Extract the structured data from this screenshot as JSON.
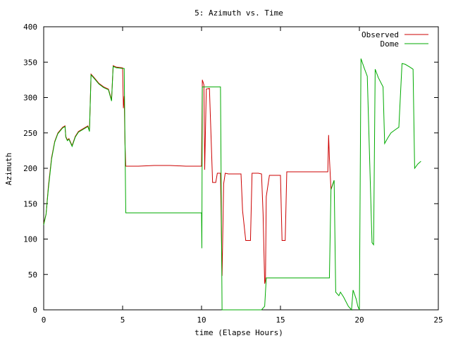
{
  "chart_data": {
    "type": "line",
    "title": "5: Azimuth vs. Time",
    "xlabel": "time (Elapse Hours)",
    "ylabel": "Azimuth",
    "xlim": [
      0,
      25
    ],
    "ylim": [
      0,
      400
    ],
    "x_ticks": [
      0,
      5,
      10,
      15,
      20,
      25
    ],
    "y_ticks": [
      0,
      50,
      100,
      150,
      200,
      250,
      300,
      350,
      400
    ],
    "x_tick_labels": [
      "0",
      "5",
      "10",
      "15",
      "20",
      "25"
    ],
    "y_tick_labels": [
      "0",
      "50",
      "100",
      "150",
      "200",
      "250",
      "300",
      "350",
      "400"
    ],
    "grid": false,
    "legend_position": "top-right",
    "series": [
      {
        "name": "Observed",
        "color": "#cc0000",
        "points": [
          [
            0.0,
            122
          ],
          [
            0.15,
            135
          ],
          [
            0.3,
            175
          ],
          [
            0.5,
            215
          ],
          [
            0.7,
            238
          ],
          [
            0.9,
            250
          ],
          [
            1.2,
            258
          ],
          [
            1.35,
            260
          ],
          [
            1.4,
            245
          ],
          [
            1.5,
            240
          ],
          [
            1.6,
            242
          ],
          [
            1.8,
            232
          ],
          [
            2.0,
            245
          ],
          [
            2.2,
            252
          ],
          [
            2.5,
            256
          ],
          [
            2.8,
            260
          ],
          [
            2.9,
            253
          ],
          [
            3.0,
            333
          ],
          [
            3.2,
            328
          ],
          [
            3.5,
            320
          ],
          [
            3.8,
            315
          ],
          [
            4.1,
            312
          ],
          [
            4.3,
            297
          ],
          [
            4.4,
            345
          ],
          [
            4.6,
            343
          ],
          [
            5.0,
            342
          ],
          [
            5.05,
            285
          ],
          [
            5.1,
            302
          ],
          [
            5.15,
            235
          ],
          [
            5.2,
            203
          ],
          [
            6.0,
            203
          ],
          [
            7.0,
            204
          ],
          [
            8.0,
            204
          ],
          [
            9.0,
            203
          ],
          [
            10.0,
            203
          ],
          [
            10.05,
            325
          ],
          [
            10.15,
            318
          ],
          [
            10.2,
            198
          ],
          [
            10.3,
            312
          ],
          [
            10.5,
            313
          ],
          [
            10.7,
            180
          ],
          [
            10.9,
            180
          ],
          [
            11.0,
            193
          ],
          [
            11.2,
            193
          ],
          [
            11.3,
            48
          ],
          [
            11.4,
            178
          ],
          [
            11.5,
            193
          ],
          [
            11.7,
            192
          ],
          [
            12.5,
            192
          ],
          [
            12.6,
            140
          ],
          [
            12.8,
            98
          ],
          [
            13.1,
            98
          ],
          [
            13.2,
            193
          ],
          [
            13.6,
            193
          ],
          [
            13.8,
            192
          ],
          [
            13.9,
            135
          ],
          [
            14.0,
            37
          ],
          [
            14.05,
            42
          ],
          [
            14.1,
            160
          ],
          [
            14.3,
            190
          ],
          [
            15.0,
            190
          ],
          [
            15.1,
            98
          ],
          [
            15.3,
            98
          ],
          [
            15.4,
            195
          ],
          [
            16.0,
            195
          ],
          [
            17.0,
            195
          ],
          [
            18.0,
            195
          ],
          [
            18.05,
            247
          ],
          [
            18.1,
            215
          ],
          [
            18.2,
            170
          ],
          [
            18.4,
            183
          ]
        ]
      },
      {
        "name": "Dome",
        "color": "#00aa00",
        "points": [
          [
            0.0,
            120
          ],
          [
            0.15,
            135
          ],
          [
            0.3,
            172
          ],
          [
            0.5,
            213
          ],
          [
            0.7,
            237
          ],
          [
            0.9,
            249
          ],
          [
            1.2,
            257
          ],
          [
            1.35,
            259
          ],
          [
            1.4,
            244
          ],
          [
            1.5,
            239
          ],
          [
            1.6,
            241
          ],
          [
            1.8,
            231
          ],
          [
            2.0,
            244
          ],
          [
            2.2,
            251
          ],
          [
            2.5,
            255
          ],
          [
            2.8,
            259
          ],
          [
            2.9,
            252
          ],
          [
            3.0,
            332
          ],
          [
            3.2,
            327
          ],
          [
            3.5,
            319
          ],
          [
            3.8,
            314
          ],
          [
            4.1,
            311
          ],
          [
            4.3,
            295
          ],
          [
            4.4,
            344
          ],
          [
            4.6,
            342
          ],
          [
            5.0,
            341
          ],
          [
            5.1,
            341
          ],
          [
            5.2,
            137
          ],
          [
            6.0,
            137
          ],
          [
            7.0,
            137
          ],
          [
            8.0,
            137
          ],
          [
            9.0,
            137
          ],
          [
            10.0,
            137
          ],
          [
            10.02,
            87
          ],
          [
            10.05,
            315
          ],
          [
            10.2,
            315
          ],
          [
            11.0,
            315
          ],
          [
            11.1,
            315
          ],
          [
            11.2,
            315
          ],
          [
            11.3,
            0
          ],
          [
            12.0,
            0
          ],
          [
            13.0,
            0
          ],
          [
            13.8,
            0
          ],
          [
            14.0,
            5
          ],
          [
            14.1,
            45
          ],
          [
            14.2,
            45
          ],
          [
            15.0,
            45
          ],
          [
            16.0,
            45
          ],
          [
            17.0,
            45
          ],
          [
            18.0,
            45
          ],
          [
            18.1,
            45
          ],
          [
            18.2,
            170
          ],
          [
            18.4,
            183
          ],
          [
            18.5,
            25
          ],
          [
            18.7,
            20
          ],
          [
            18.8,
            25
          ],
          [
            19.0,
            18
          ],
          [
            19.3,
            5
          ],
          [
            19.5,
            0
          ],
          [
            19.6,
            28
          ],
          [
            19.8,
            15
          ],
          [
            19.9,
            5
          ],
          [
            20.0,
            0
          ],
          [
            20.1,
            355
          ],
          [
            20.3,
            342
          ],
          [
            20.5,
            330
          ],
          [
            20.8,
            95
          ],
          [
            20.9,
            92
          ],
          [
            21.0,
            340
          ],
          [
            21.2,
            328
          ],
          [
            21.5,
            315
          ],
          [
            21.6,
            235
          ],
          [
            21.8,
            243
          ],
          [
            22.0,
            250
          ],
          [
            22.3,
            255
          ],
          [
            22.5,
            258
          ],
          [
            22.7,
            348
          ],
          [
            22.9,
            347
          ],
          [
            23.2,
            343
          ],
          [
            23.4,
            340
          ],
          [
            23.5,
            200
          ],
          [
            23.7,
            206
          ],
          [
            23.9,
            210
          ]
        ]
      }
    ]
  }
}
